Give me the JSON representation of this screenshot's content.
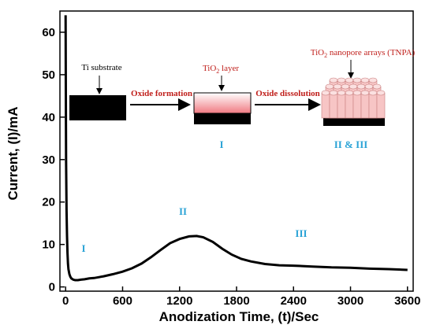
{
  "chart_data": {
    "type": "line",
    "title": "",
    "xlabel": "Anodization Time, (t)/Sec",
    "ylabel": "Current, (I)/mA",
    "xlim": [
      -60,
      3660
    ],
    "ylim": [
      -1,
      65
    ],
    "x_ticks": [
      0,
      600,
      1200,
      1800,
      2400,
      3000,
      3600
    ],
    "y_ticks": [
      0,
      10,
      20,
      30,
      40,
      50,
      60
    ],
    "grid": false,
    "legend": "none",
    "series": [
      {
        "name": "",
        "color": "#000000",
        "x": [
          0,
          2,
          5,
          10,
          15,
          20,
          25,
          30,
          40,
          50,
          60,
          80,
          100,
          130,
          160,
          200,
          250,
          300,
          400,
          500,
          600,
          700,
          800,
          900,
          1000,
          1100,
          1200,
          1300,
          1380,
          1450,
          1550,
          1650,
          1750,
          1850,
          1950,
          2100,
          2250,
          2400,
          2600,
          2800,
          3000,
          3200,
          3400,
          3600
        ],
        "y": [
          64,
          45,
          30,
          18,
          12,
          8,
          5.5,
          4.2,
          3.0,
          2.4,
          2.0,
          1.7,
          1.6,
          1.6,
          1.7,
          1.8,
          2.0,
          2.1,
          2.5,
          3.0,
          3.6,
          4.4,
          5.5,
          7.0,
          8.7,
          10.3,
          11.3,
          11.9,
          12.0,
          11.7,
          10.6,
          9.0,
          7.6,
          6.6,
          6.0,
          5.4,
          5.1,
          5.0,
          4.8,
          4.6,
          4.5,
          4.3,
          4.2,
          4.0
        ]
      }
    ],
    "annotations": {
      "ti_substrate": "Ti substrate",
      "oxide_formation": "Oxide formation",
      "tio2_layer_prefix": "TiO",
      "tio2_layer_sub": "2",
      "tio2_layer_suffix": " layer",
      "oxide_dissolution": "Oxide dissolution",
      "tnpa_prefix": "TiO",
      "tnpa_sub": "2",
      "tnpa_suffix": " nanopore arrays (TNPA)",
      "stage_i_inset": "I",
      "stage_ii_iii_inset": "II & III",
      "stage_i_curve": "I",
      "stage_ii_curve": "II",
      "stage_iii_curve": "III"
    },
    "colors": {
      "curve": "#000000",
      "red_text": "#c0201c",
      "stage_text": "#2ba3d6",
      "tio2_gradient_top": "#ffffff",
      "tio2_gradient_bottom": "#f07a82",
      "substrate": "#000000",
      "nanopore": "#f7c5c5"
    }
  }
}
